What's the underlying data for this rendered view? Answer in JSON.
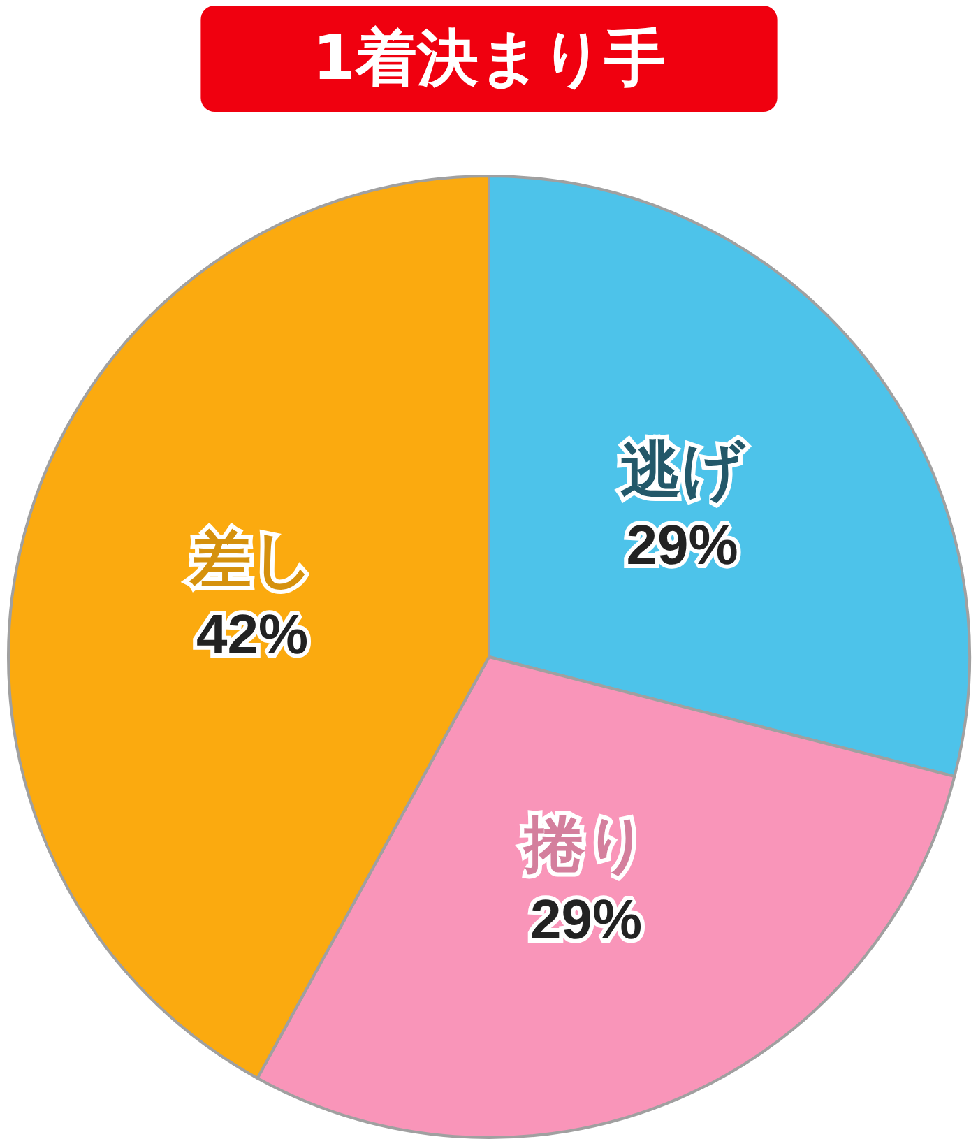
{
  "chart_data": {
    "type": "pie",
    "title": "1着決まり手",
    "categories": [
      "逃げ",
      "捲り",
      "差し"
    ],
    "values": [
      29,
      29,
      42
    ],
    "colors": [
      "#4dc3ea",
      "#f995b9",
      "#fbaa0f"
    ],
    "value_labels": [
      "29%",
      "29%",
      "42%"
    ],
    "legend": false
  }
}
